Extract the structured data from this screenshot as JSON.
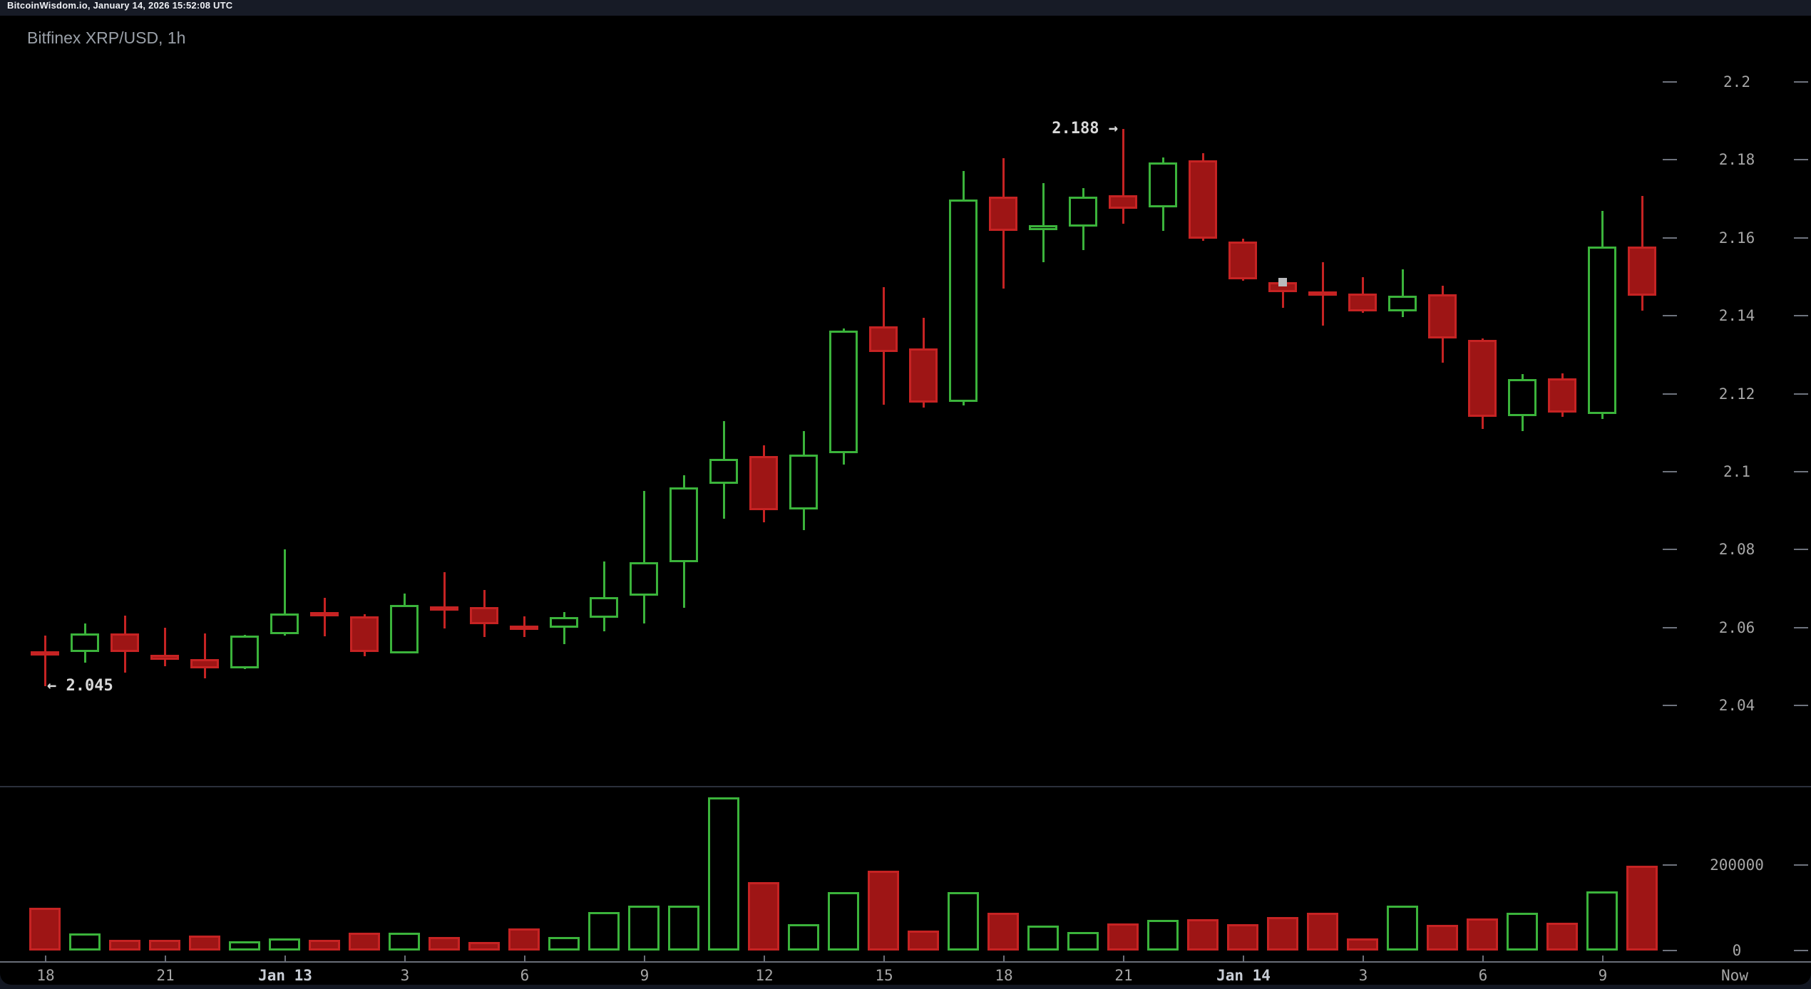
{
  "top_bar": {
    "text": "BitcoinWisdom.io, January 14, 2026 15:52:08 UTC"
  },
  "title": "Bitfinex XRP/USD, 1h",
  "annotations": {
    "high_text": "2.188 →",
    "low_text": "← 2.045"
  },
  "colors": {
    "background": "#000000",
    "page": "#131722",
    "bullish": "#3bb33b",
    "bearish_border": "#c62323",
    "bearish_fill": "#9e1515",
    "axis_text": "#a6a6a6",
    "annotation_text": "#d9d9d9"
  },
  "chart_data": {
    "type": "candlestick",
    "title": "Bitfinex XRP/USD, 1h",
    "exchange": "Bitfinex",
    "pair": "XRP/USD",
    "interval": "1h",
    "legend_position": "none",
    "grid": "off",
    "marked_high": 2.188,
    "marked_low": 2.045,
    "price_range_visible": [
      2.019,
      2.217
    ],
    "volume_range_visible": [
      0,
      385000
    ],
    "price_axis": {
      "ticks": [
        {
          "label": "2.2",
          "value": 2.2
        },
        {
          "label": "2.18",
          "value": 2.18
        },
        {
          "label": "2.16",
          "value": 2.16
        },
        {
          "label": "2.14",
          "value": 2.14
        },
        {
          "label": "2.12",
          "value": 2.12
        },
        {
          "label": "2.1",
          "value": 2.1
        },
        {
          "label": "2.08",
          "value": 2.08
        },
        {
          "label": "2.06",
          "value": 2.06
        },
        {
          "label": "2.04",
          "value": 2.04
        }
      ]
    },
    "volume_axis": {
      "ticks": [
        {
          "label": "200000",
          "value": 200000
        },
        {
          "label": "0",
          "value": 0
        }
      ]
    },
    "x_axis": {
      "tick_labels": [
        "18",
        "21",
        "Jan 13",
        "3",
        "6",
        "9",
        "12",
        "15",
        "18",
        "21",
        "Jan 14",
        "3",
        "6",
        "9"
      ],
      "now_label": "Now"
    },
    "last_price_marker": {
      "candle_index": 31,
      "price": 2.1486
    },
    "candles": [
      {
        "o": 2.054,
        "h": 2.058,
        "l": 2.045,
        "c": 2.0535,
        "v": 100000
      },
      {
        "o": 2.0537,
        "h": 2.061,
        "l": 2.051,
        "c": 2.0585,
        "v": 40000
      },
      {
        "o": 2.0585,
        "h": 2.063,
        "l": 2.0485,
        "c": 2.0537,
        "v": 25000
      },
      {
        "o": 2.0531,
        "h": 2.06,
        "l": 2.05,
        "c": 2.0518,
        "v": 25000
      },
      {
        "o": 2.052,
        "h": 2.0585,
        "l": 2.047,
        "c": 2.0496,
        "v": 35000
      },
      {
        "o": 2.0495,
        "h": 2.0582,
        "l": 2.0493,
        "c": 2.058,
        "v": 21000
      },
      {
        "o": 2.0583,
        "h": 2.08,
        "l": 2.058,
        "c": 2.0637,
        "v": 29000
      },
      {
        "o": 2.064,
        "h": 2.0676,
        "l": 2.0577,
        "c": 2.063,
        "v": 25000
      },
      {
        "o": 2.0628,
        "h": 2.0635,
        "l": 2.0527,
        "c": 2.0538,
        "v": 41000
      },
      {
        "o": 2.0533,
        "h": 2.0687,
        "l": 2.0533,
        "c": 2.0658,
        "v": 41000
      },
      {
        "o": 2.0655,
        "h": 2.0742,
        "l": 2.0598,
        "c": 2.065,
        "v": 31000
      },
      {
        "o": 2.0653,
        "h": 2.0697,
        "l": 2.0576,
        "c": 2.0609,
        "v": 20000
      },
      {
        "o": 2.0605,
        "h": 2.0628,
        "l": 2.0576,
        "c": 2.06,
        "v": 52000
      },
      {
        "o": 2.06,
        "h": 2.064,
        "l": 2.0558,
        "c": 2.0627,
        "v": 31000
      },
      {
        "o": 2.0625,
        "h": 2.077,
        "l": 2.059,
        "c": 2.0678,
        "v": 90000
      },
      {
        "o": 2.0681,
        "h": 2.095,
        "l": 2.061,
        "c": 2.0767,
        "v": 105000
      },
      {
        "o": 2.0767,
        "h": 2.099,
        "l": 2.065,
        "c": 2.096,
        "v": 105000
      },
      {
        "o": 2.0968,
        "h": 2.113,
        "l": 2.088,
        "c": 2.1032,
        "v": 358000
      },
      {
        "o": 2.1041,
        "h": 2.1068,
        "l": 2.087,
        "c": 2.0901,
        "v": 160000
      },
      {
        "o": 2.0903,
        "h": 2.1105,
        "l": 2.085,
        "c": 2.1043,
        "v": 61000
      },
      {
        "o": 2.1048,
        "h": 2.1368,
        "l": 2.1019,
        "c": 2.1362,
        "v": 136000
      },
      {
        "o": 2.1373,
        "h": 2.1473,
        "l": 2.1172,
        "c": 2.1307,
        "v": 187000
      },
      {
        "o": 2.1316,
        "h": 2.1394,
        "l": 2.1165,
        "c": 2.1178,
        "v": 47000
      },
      {
        "o": 2.118,
        "h": 2.1772,
        "l": 2.117,
        "c": 2.1699,
        "v": 136000
      },
      {
        "o": 2.1706,
        "h": 2.1805,
        "l": 2.147,
        "c": 2.1617,
        "v": 88000
      },
      {
        "o": 2.162,
        "h": 2.1741,
        "l": 2.1537,
        "c": 2.1632,
        "v": 58000
      },
      {
        "o": 2.1628,
        "h": 2.1728,
        "l": 2.1568,
        "c": 2.1706,
        "v": 43000
      },
      {
        "o": 2.171,
        "h": 2.188,
        "l": 2.1637,
        "c": 2.1675,
        "v": 63000
      },
      {
        "o": 2.1679,
        "h": 2.1807,
        "l": 2.1617,
        "c": 2.1794,
        "v": 72000
      },
      {
        "o": 2.1798,
        "h": 2.1818,
        "l": 2.1592,
        "c": 2.1597,
        "v": 73000
      },
      {
        "o": 2.159,
        "h": 2.1597,
        "l": 2.149,
        "c": 2.1493,
        "v": 62000
      },
      {
        "o": 2.1486,
        "h": 2.1492,
        "l": 2.142,
        "c": 2.146,
        "v": 78000
      },
      {
        "o": 2.1462,
        "h": 2.1537,
        "l": 2.1375,
        "c": 2.1458,
        "v": 88000
      },
      {
        "o": 2.1457,
        "h": 2.15,
        "l": 2.1407,
        "c": 2.1411,
        "v": 28000
      },
      {
        "o": 2.1411,
        "h": 2.152,
        "l": 2.1396,
        "c": 2.1451,
        "v": 105000
      },
      {
        "o": 2.1455,
        "h": 2.1477,
        "l": 2.128,
        "c": 2.1342,
        "v": 60000
      },
      {
        "o": 2.1338,
        "h": 2.1342,
        "l": 2.111,
        "c": 2.1141,
        "v": 75000
      },
      {
        "o": 2.1143,
        "h": 2.1251,
        "l": 2.1105,
        "c": 2.1237,
        "v": 89000
      },
      {
        "o": 2.1239,
        "h": 2.1252,
        "l": 2.114,
        "c": 2.1152,
        "v": 65000
      },
      {
        "o": 2.1148,
        "h": 2.167,
        "l": 2.1136,
        "c": 2.1577,
        "v": 139000
      },
      {
        "o": 2.1577,
        "h": 2.1708,
        "l": 2.1414,
        "c": 2.1451,
        "v": 199000
      }
    ]
  }
}
